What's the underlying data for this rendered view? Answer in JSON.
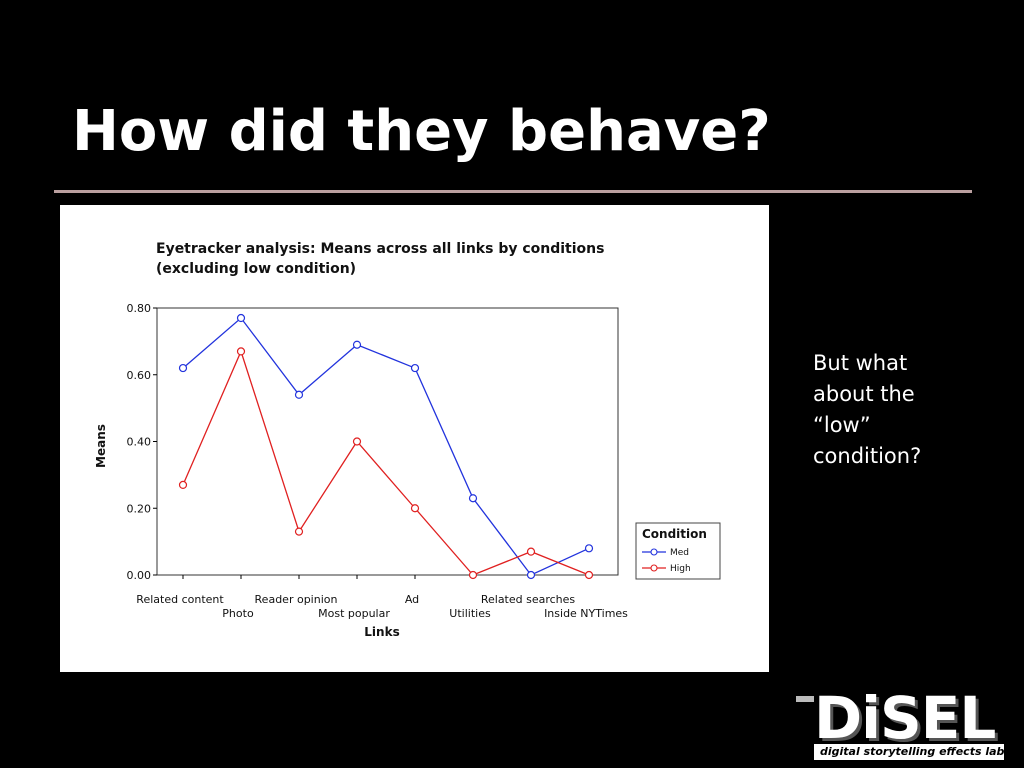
{
  "slide": {
    "title": "How did they behave?",
    "note_lines": [
      "But what",
      "about the",
      "“low”",
      "condition?"
    ],
    "logo": {
      "word": "DiSEL",
      "tagline": "digital storytelling effects lab"
    },
    "colors": {
      "background": "#000000",
      "title": "#ffffff",
      "rule": "#bba0a0"
    }
  },
  "chart_data": {
    "type": "line",
    "title_lines": [
      "Eyetracker analysis: Means across all links by conditions",
      "(excluding low condition)"
    ],
    "xlabel": "Links",
    "ylabel": "Means",
    "categories": [
      "Related content",
      "Photo",
      "Reader opinion",
      "Most popular",
      "Ad",
      "Utilities",
      "Related searches",
      "Inside NYTimes"
    ],
    "yticks": [
      "0.00",
      "0.20",
      "0.40",
      "0.60",
      "0.80"
    ],
    "ylim": [
      0,
      0.8
    ],
    "grid": false,
    "legend": {
      "title": "Condition",
      "placement": "right"
    },
    "series": [
      {
        "name": "Med",
        "color": "#2233dd",
        "values": [
          0.62,
          0.77,
          0.54,
          0.69,
          0.62,
          0.23,
          0.0,
          0.08
        ]
      },
      {
        "name": "High",
        "color": "#e02020",
        "values": [
          0.27,
          0.67,
          0.13,
          0.4,
          0.2,
          0.0,
          0.07,
          0.0
        ]
      }
    ]
  }
}
